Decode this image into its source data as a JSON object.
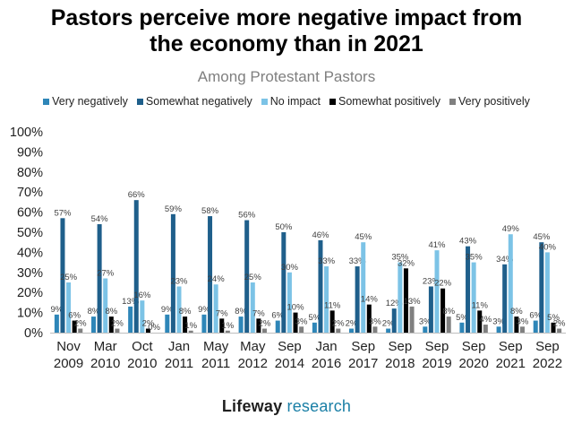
{
  "title_line1": "Pastors perceive more negative impact from",
  "title_line2": "the economy than in 2021",
  "subtitle": "Among Protestant Pastors",
  "brand": {
    "part1": "Lifeway",
    "part2": " research"
  },
  "chart_data": {
    "type": "bar",
    "title": "Pastors perceive more negative impact from the economy than in 2021",
    "subtitle": "Among Protestant Pastors",
    "legend_position": "top",
    "grid": false,
    "ylim": [
      0,
      100
    ],
    "y_ticks": [
      "0%",
      "10%",
      "20%",
      "30%",
      "40%",
      "50%",
      "60%",
      "70%",
      "80%",
      "90%",
      "100%"
    ],
    "categories": [
      [
        "Nov",
        "2009"
      ],
      [
        "Mar",
        "2010"
      ],
      [
        "Oct",
        "2010"
      ],
      [
        "Jan",
        "2011"
      ],
      [
        "May",
        "2011"
      ],
      [
        "May",
        "2012"
      ],
      [
        "Sep",
        "2014"
      ],
      [
        "Jan",
        "2016"
      ],
      [
        "Sep",
        "2017"
      ],
      [
        "Sep",
        "2018"
      ],
      [
        "Sep",
        "2019"
      ],
      [
        "Sep",
        "2020"
      ],
      [
        "Sep",
        "2021"
      ],
      [
        "Sep",
        "2022"
      ]
    ],
    "series": [
      {
        "name": "Very negatively",
        "color": "#2e86b8",
        "values": [
          9,
          8,
          13,
          9,
          9,
          8,
          6,
          5,
          2,
          2,
          3,
          5,
          3,
          6
        ],
        "labels": [
          "9%",
          "8%",
          "13%",
          "9%",
          "9%",
          "8%",
          "6%",
          "5%",
          "2%",
          "2%",
          "3%",
          "5%",
          "3%",
          "6%"
        ]
      },
      {
        "name": "Somewhat negatively",
        "color": "#1f5f8b",
        "values": [
          57,
          54,
          66,
          59,
          58,
          56,
          50,
          46,
          33,
          12,
          23,
          43,
          34,
          45
        ],
        "labels": [
          "57%",
          "54%",
          "66%",
          "59%",
          "58%",
          "56%",
          "50%",
          "46%",
          "33%",
          "12%",
          "23%",
          "43%",
          "34%",
          "45%"
        ]
      },
      {
        "name": "No impact",
        "color": "#7cc3e6",
        "values": [
          25,
          27,
          16,
          23,
          24,
          25,
          30,
          33,
          45,
          35,
          41,
          35,
          49,
          40
        ],
        "labels": [
          "25%",
          "27%",
          "16%",
          "23%",
          "24%",
          "25%",
          "30%",
          "33%",
          "45%",
          "35%",
          "41%",
          "35%",
          "49%",
          "40%"
        ]
      },
      {
        "name": "Somewhat positively",
        "color": "#000000",
        "values": [
          6,
          8,
          2,
          8,
          7,
          7,
          10,
          11,
          14,
          32,
          22,
          11,
          8,
          5
        ],
        "labels": [
          "6%",
          "8%",
          "2%",
          "8%",
          "7%",
          "7%",
          "10%",
          "11%",
          "14%",
          "32%",
          "22%",
          "11%",
          "8%",
          "5%"
        ]
      },
      {
        "name": "Very positively",
        "color": "#808080",
        "values": [
          2,
          2,
          0,
          1,
          1,
          2,
          3,
          2,
          3,
          13,
          8,
          4,
          3,
          2
        ],
        "labels": [
          "2%",
          "2%",
          "0%",
          "1%",
          "1%",
          "2%",
          "3%",
          "2%",
          "3%",
          "13%",
          "8%",
          "4%",
          "3%",
          "2%"
        ]
      }
    ]
  }
}
